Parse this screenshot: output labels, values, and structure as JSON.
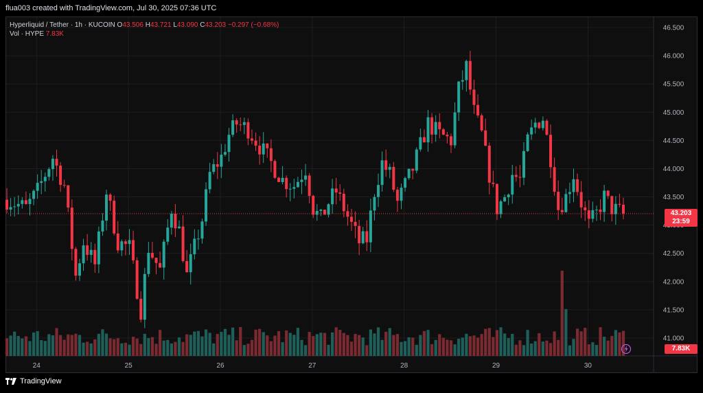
{
  "header": {
    "text": "flua003 created with TradingView.com, Jul 30, 2025 07:36 UTC"
  },
  "legend": {
    "symbol": "Hyperliquid / Tether · 1h · KUCOIN",
    "open_label": "O",
    "open": "43.506",
    "high_label": "H",
    "high": "43.721",
    "low_label": "L",
    "low": "43.090",
    "close_label": "C",
    "close": "43.203",
    "change": "−0.297 (−0.68%)",
    "vol_label": "Vol · HYPE",
    "vol_value": "7.83K"
  },
  "price_tag": {
    "price": "43.203",
    "countdown": "23:59"
  },
  "volume_tag": "7.83K",
  "brand": "TradingView",
  "colors": {
    "up": "#26a69a",
    "down": "#f23645",
    "up_vol": "#1f5f5a",
    "down_vol": "#7a2a30",
    "grid": "#1e1e22",
    "axis_text": "#b2b5be"
  },
  "chart_data": {
    "type": "candlestick",
    "ylim": [
      40.8,
      46.65
    ],
    "y_ticks": [
      "46.500",
      "46.000",
      "45.500",
      "45.000",
      "44.500",
      "44.000",
      "43.500",
      "43.000",
      "42.500",
      "42.000",
      "41.500",
      "41.000"
    ],
    "y_tick_values": [
      46.5,
      46.0,
      45.5,
      45.0,
      44.5,
      44.0,
      43.5,
      43.0,
      42.5,
      42.0,
      41.5,
      41.0
    ],
    "x_ticks": [
      "24",
      "25",
      "26",
      "27",
      "28",
      "29",
      "30"
    ],
    "x_tick_positions": [
      7.75,
      31.75,
      55.75,
      79.75,
      103.75,
      127.75,
      151.75
    ],
    "candle_count": 162,
    "current_price": 43.203,
    "anchors": [
      [
        0,
        43.45
      ],
      [
        5,
        43.3
      ],
      [
        8,
        43.6
      ],
      [
        12,
        44.2
      ],
      [
        15,
        43.7
      ],
      [
        18,
        42.1
      ],
      [
        20,
        42.7
      ],
      [
        23,
        42.3
      ],
      [
        26,
        43.6
      ],
      [
        29,
        42.7
      ],
      [
        32,
        42.6
      ],
      [
        35,
        41.5
      ],
      [
        37,
        42.6
      ],
      [
        40,
        42.2
      ],
      [
        43,
        43.3
      ],
      [
        45,
        42.9
      ],
      [
        47,
        42.1
      ],
      [
        51,
        43.1
      ],
      [
        53,
        43.9
      ],
      [
        56,
        44.2
      ],
      [
        58,
        44.6
      ],
      [
        60,
        44.8
      ],
      [
        63,
        44.7
      ],
      [
        66,
        44.4
      ],
      [
        69,
        44.1
      ],
      [
        72,
        43.8
      ],
      [
        75,
        43.7
      ],
      [
        78,
        44.0
      ],
      [
        80,
        43.3
      ],
      [
        82,
        43.1
      ],
      [
        84,
        43.4
      ],
      [
        86,
        43.6
      ],
      [
        88,
        43.3
      ],
      [
        90,
        43.0
      ],
      [
        92,
        42.7
      ],
      [
        94,
        42.75
      ],
      [
        96,
        43.6
      ],
      [
        98,
        44.1
      ],
      [
        100,
        43.9
      ],
      [
        102,
        43.4
      ],
      [
        104,
        43.7
      ],
      [
        106,
        44.0
      ],
      [
        108,
        44.4
      ],
      [
        110,
        44.8
      ],
      [
        113,
        44.6
      ],
      [
        116,
        44.5
      ],
      [
        118,
        45.4
      ],
      [
        120,
        45.8
      ],
      [
        122,
        45.0
      ],
      [
        124,
        44.6
      ],
      [
        126,
        43.9
      ],
      [
        128,
        43.3
      ],
      [
        130,
        43.5
      ],
      [
        132,
        43.9
      ],
      [
        134,
        43.8
      ],
      [
        136,
        44.5
      ],
      [
        138,
        44.8
      ],
      [
        140,
        44.9
      ],
      [
        142,
        44.2
      ],
      [
        144,
        43.3
      ],
      [
        146,
        43.5
      ],
      [
        148,
        43.9
      ],
      [
        150,
        43.4
      ],
      [
        152,
        43.0
      ],
      [
        154,
        43.2
      ],
      [
        156,
        43.5
      ],
      [
        158,
        43.3
      ],
      [
        161,
        43.2
      ]
    ],
    "volume_spikes": [
      [
        145,
        1.0
      ],
      [
        146,
        0.55
      ],
      [
        148,
        0.2
      ]
    ],
    "volume_max_label": "7.83K"
  }
}
